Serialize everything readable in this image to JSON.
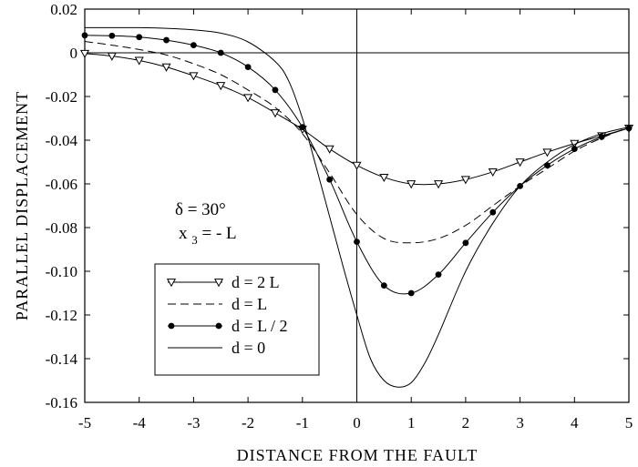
{
  "chart_data": {
    "type": "line",
    "title": "",
    "xlabel": "DISTANCE FROM THE FAULT",
    "ylabel": "PARALLEL DISPLACEMENT",
    "xlim": [
      -5,
      5
    ],
    "ylim": [
      -0.16,
      0.02
    ],
    "x_ticks": [
      -5,
      -4,
      -3,
      -2,
      -1,
      0,
      1,
      2,
      3,
      4,
      5
    ],
    "x_tick_labels": [
      "-5",
      "-4",
      "-3",
      "-2",
      "-1",
      "0",
      "1",
      "2",
      "3",
      "4",
      "5"
    ],
    "y_ticks": [
      0.02,
      0,
      -0.02,
      -0.04,
      -0.06,
      -0.08,
      -0.1,
      -0.12,
      -0.14,
      -0.16
    ],
    "y_tick_labels": [
      "0.02",
      "0",
      "-0.02",
      "-0.04",
      "-0.06",
      "-0.08",
      "-0.10",
      "-0.12",
      "-0.14",
      "-0.16"
    ],
    "grid": false,
    "reference_lines": {
      "x": 0,
      "y": 0
    },
    "annotations": {
      "delta": "δ  =  30°",
      "x3_var": "x",
      "x3_sub": "3",
      "x3_rest": "  =  - L"
    },
    "legend_position": "lower-left",
    "series": [
      {
        "name": "d  =  2 L",
        "marker": "triangle-down-open",
        "dash": "solid",
        "x": [
          -5,
          -4.5,
          -4,
          -3.5,
          -3,
          -2.5,
          -2,
          -1.5,
          -1,
          -0.5,
          0,
          0.5,
          1,
          1.5,
          2,
          2.5,
          3,
          3.5,
          4,
          4.5,
          5
        ],
        "y": [
          -0.0003,
          -0.0015,
          -0.0035,
          -0.0065,
          -0.0105,
          -0.015,
          -0.0205,
          -0.0275,
          -0.035,
          -0.044,
          -0.0515,
          -0.057,
          -0.06,
          -0.06,
          -0.058,
          -0.0545,
          -0.05,
          -0.0455,
          -0.0415,
          -0.038,
          -0.0345
        ]
      },
      {
        "name": "d  =  L",
        "marker": "none",
        "dash": "dashed",
        "x": [
          -5,
          -4.5,
          -4,
          -3.5,
          -3,
          -2.5,
          -2,
          -1.5,
          -1,
          -0.5,
          0,
          0.5,
          1,
          1.5,
          2,
          2.5,
          3,
          3.5,
          4,
          4.5,
          5
        ],
        "y": [
          0.0052,
          0.0035,
          0.0015,
          -0.001,
          -0.005,
          -0.01,
          -0.017,
          -0.025,
          -0.037,
          -0.055,
          -0.074,
          -0.085,
          -0.087,
          -0.085,
          -0.079,
          -0.07,
          -0.061,
          -0.053,
          -0.045,
          -0.039,
          -0.034
        ]
      },
      {
        "name": "d  =  L / 2",
        "marker": "circle-filled",
        "dash": "solid",
        "x": [
          -5,
          -4.5,
          -4,
          -3.5,
          -3,
          -2.5,
          -2,
          -1.5,
          -1,
          -0.5,
          0,
          0.5,
          1,
          1.5,
          2,
          2.5,
          3,
          3.5,
          4,
          4.5,
          5
        ],
        "y": [
          0.008,
          0.0078,
          0.0072,
          0.0058,
          0.0035,
          0.0,
          -0.0065,
          -0.017,
          -0.034,
          -0.058,
          -0.0865,
          -0.1065,
          -0.11,
          -0.1015,
          -0.087,
          -0.073,
          -0.061,
          -0.0515,
          -0.044,
          -0.0385,
          -0.0345
        ]
      },
      {
        "name": "d  =  0",
        "marker": "none",
        "dash": "solid",
        "x": [
          -5,
          -4.5,
          -4,
          -3.5,
          -3,
          -2.5,
          -2,
          -1.5,
          -1.25,
          -1,
          -0.75,
          -0.5,
          -0.25,
          0,
          0.25,
          0.5,
          0.75,
          1,
          1.25,
          1.5,
          2,
          2.5,
          3,
          3.5,
          4,
          4.5,
          5
        ],
        "y": [
          0.0115,
          0.0115,
          0.0115,
          0.0112,
          0.0105,
          0.009,
          0.005,
          -0.004,
          -0.013,
          -0.03,
          -0.052,
          -0.075,
          -0.098,
          -0.12,
          -0.14,
          -0.15,
          -0.153,
          -0.151,
          -0.142,
          -0.129,
          -0.1,
          -0.078,
          -0.061,
          -0.05,
          -0.042,
          -0.037,
          -0.034
        ]
      }
    ]
  }
}
